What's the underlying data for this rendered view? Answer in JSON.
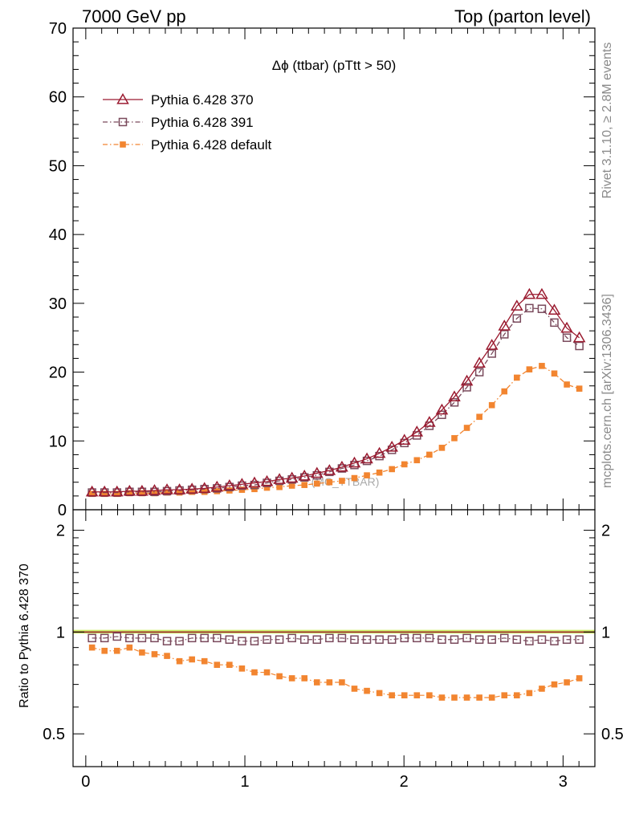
{
  "header": {
    "left": "7000 GeV pp",
    "right": "Top (parton level)"
  },
  "side": {
    "rivet": "Rivet 3.1.10, ≥ 2.8M events",
    "mcplots": "mcplots.cern.ch [arXiv:1306.3436]"
  },
  "chart_data": [
    {
      "type": "line",
      "title": "Δϕ (ttbar) (pTtt > 50)",
      "watermark": "(MC_TTBAR)",
      "xlim": [
        -0.08,
        3.2
      ],
      "ylim": [
        0,
        70
      ],
      "yticks": [
        0,
        10,
        20,
        30,
        40,
        50,
        60,
        70
      ],
      "yticklabels": [
        "0",
        "10",
        "20",
        "30",
        "40",
        "50",
        "60",
        "70"
      ],
      "legend_position": "top-left",
      "x": [
        0.0393,
        0.1178,
        0.1963,
        0.2749,
        0.3534,
        0.432,
        0.5105,
        0.589,
        0.6676,
        0.7461,
        0.8247,
        0.9032,
        0.9817,
        1.0603,
        1.1388,
        1.2174,
        1.2959,
        1.3744,
        1.453,
        1.5315,
        1.6101,
        1.6886,
        1.7671,
        1.8457,
        1.9242,
        2.0028,
        2.0813,
        2.1598,
        2.2384,
        2.3169,
        2.3955,
        2.474,
        2.5525,
        2.6311,
        2.7096,
        2.7882,
        2.8667,
        2.9452,
        3.0238,
        3.1023
      ],
      "series": [
        {
          "name": "Pythia 6.428 370",
          "color": "#9b1b30",
          "marker": "open-triangle",
          "linestyle": "solid",
          "values": [
            2.6,
            2.6,
            2.6,
            2.7,
            2.7,
            2.8,
            2.9,
            2.9,
            3.0,
            3.1,
            3.3,
            3.5,
            3.7,
            3.9,
            4.1,
            4.4,
            4.6,
            4.9,
            5.3,
            5.7,
            6.2,
            6.8,
            7.4,
            8.2,
            9.1,
            10.1,
            11.3,
            12.7,
            14.5,
            16.4,
            18.7,
            21.3,
            23.9,
            26.7,
            29.6,
            31.3,
            31.3,
            29.0,
            26.4,
            25.0
          ]
        },
        {
          "name": "Pythia 6.428 391",
          "color": "#7a4a5c",
          "marker": "open-square",
          "linestyle": "dash-dot",
          "values": [
            2.5,
            2.5,
            2.5,
            2.6,
            2.6,
            2.6,
            2.7,
            2.8,
            2.9,
            3.0,
            3.1,
            3.3,
            3.5,
            3.6,
            3.9,
            4.2,
            4.4,
            4.7,
            5.0,
            5.5,
            6.0,
            6.5,
            7.1,
            7.8,
            8.7,
            9.7,
            10.8,
            12.2,
            13.8,
            15.6,
            17.8,
            20.0,
            22.7,
            25.5,
            27.8,
            29.3,
            29.2,
            27.2,
            25.0,
            23.8
          ]
        },
        {
          "name": "Pythia 6.428 default",
          "color": "#f28530",
          "marker": "filled-square",
          "linestyle": "dash-dot",
          "values": [
            2.3,
            2.3,
            2.3,
            2.4,
            2.4,
            2.4,
            2.5,
            2.5,
            2.6,
            2.6,
            2.7,
            2.8,
            2.9,
            3.0,
            3.2,
            3.3,
            3.5,
            3.6,
            3.8,
            4.0,
            4.2,
            4.6,
            5.0,
            5.4,
            5.9,
            6.6,
            7.2,
            8.0,
            9.0,
            10.4,
            11.9,
            13.5,
            15.2,
            17.2,
            19.2,
            20.4,
            20.9,
            19.8,
            18.2,
            17.6
          ]
        }
      ]
    },
    {
      "type": "line",
      "ylabel": "Ratio to Pythia 6.428 370",
      "ylim": [
        0.4,
        2.3
      ],
      "ylog": true,
      "yticks": [
        0.5,
        1,
        2
      ],
      "yticklabels": [
        "0.5",
        "1",
        "2"
      ],
      "xticks": [
        0,
        1,
        2,
        3
      ],
      "xticklabels": [
        "0",
        "1",
        "2",
        "3"
      ],
      "reference_band": {
        "color": "#ccee66"
      },
      "series": [
        {
          "name": "Pythia 6.428 391",
          "color": "#7a4a5c",
          "marker": "open-square",
          "values": [
            0.96,
            0.96,
            0.97,
            0.96,
            0.96,
            0.96,
            0.94,
            0.94,
            0.96,
            0.96,
            0.96,
            0.95,
            0.94,
            0.94,
            0.95,
            0.95,
            0.96,
            0.95,
            0.95,
            0.96,
            0.96,
            0.95,
            0.95,
            0.95,
            0.95,
            0.96,
            0.96,
            0.96,
            0.95,
            0.95,
            0.96,
            0.95,
            0.95,
            0.96,
            0.95,
            0.94,
            0.95,
            0.94,
            0.95,
            0.95
          ]
        },
        {
          "name": "Pythia 6.428 default",
          "color": "#f28530",
          "marker": "filled-square",
          "values": [
            0.9,
            0.88,
            0.88,
            0.9,
            0.87,
            0.86,
            0.85,
            0.82,
            0.83,
            0.82,
            0.8,
            0.8,
            0.78,
            0.76,
            0.76,
            0.74,
            0.73,
            0.73,
            0.71,
            0.71,
            0.71,
            0.68,
            0.67,
            0.66,
            0.65,
            0.65,
            0.65,
            0.65,
            0.64,
            0.64,
            0.64,
            0.64,
            0.64,
            0.65,
            0.65,
            0.66,
            0.68,
            0.7,
            0.71,
            0.73
          ]
        }
      ]
    }
  ]
}
